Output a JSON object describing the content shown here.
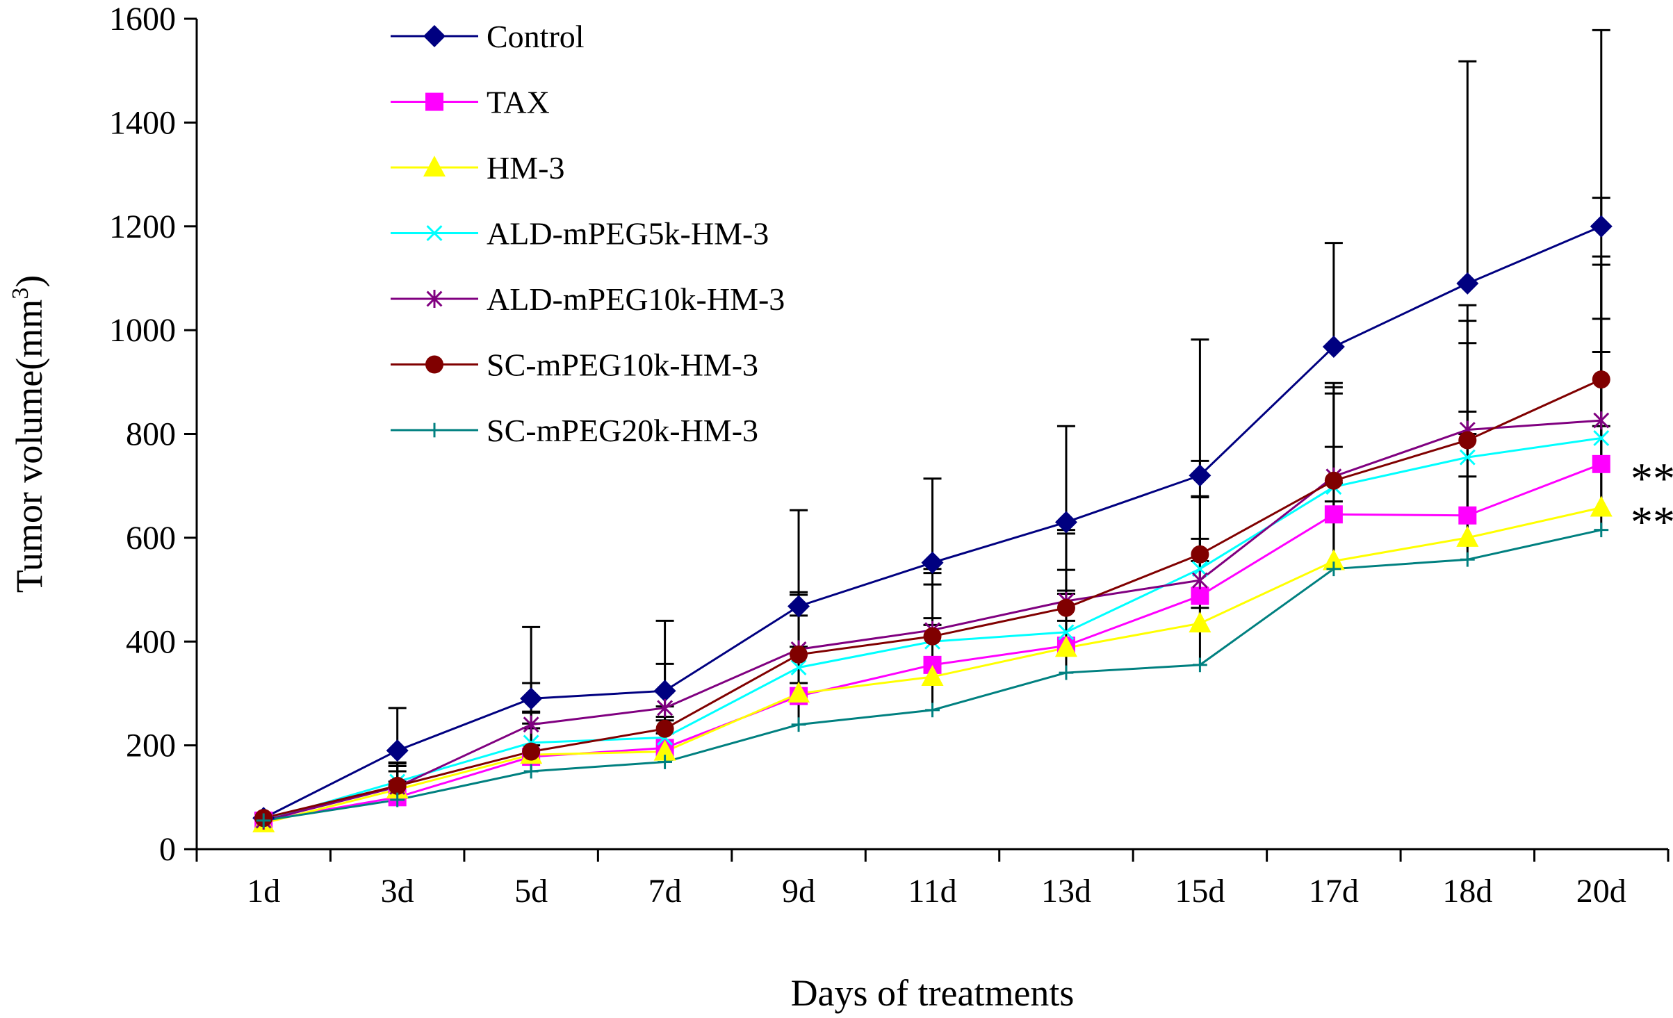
{
  "chart_data": {
    "type": "line",
    "title": "",
    "xlabel": "Days of treatments",
    "ylabel_main": "Tumor volume(mm",
    "ylabel_sup": "3",
    "ylabel_close": ")",
    "ylim": [
      0,
      1600
    ],
    "yticks": [
      0,
      200,
      400,
      600,
      800,
      1000,
      1200,
      1400,
      1600
    ],
    "ytick_labels": [
      "0",
      "200",
      "400",
      "600",
      "800",
      "1000",
      "1200",
      "1400",
      "1600"
    ],
    "categories": [
      "1d",
      "3d",
      "5d",
      "7d",
      "9d",
      "11d",
      "13d",
      "15d",
      "17d",
      "18d",
      "20d"
    ],
    "grid": false,
    "legend_position": "top-left",
    "series": [
      {
        "name": "Control",
        "color": "#000080",
        "marker": "diamond",
        "values": [
          60,
          190,
          290,
          305,
          468,
          552,
          630,
          720,
          968,
          1090,
          1200
        ],
        "err": [
          10,
          82,
          138,
          135,
          185,
          162,
          185,
          262,
          200,
          428,
          378
        ]
      },
      {
        "name": "TAX",
        "color": "#FF00FF",
        "marker": "square",
        "values": [
          55,
          100,
          178,
          195,
          295,
          355,
          392,
          488,
          645,
          643,
          742
        ],
        "err": [
          6,
          30,
          55,
          60,
          80,
          90,
          100,
          110,
          130,
          200,
          280
        ]
      },
      {
        "name": "HM-3",
        "color": "#FFFF00",
        "marker": "triangle",
        "values": [
          50,
          115,
          182,
          188,
          300,
          332,
          388,
          435,
          555,
          600,
          658
        ],
        "err": [
          6,
          35,
          60,
          60,
          90,
          100,
          110,
          120,
          150,
          200,
          300
        ]
      },
      {
        "name": "ALD-mPEG5k-HM-3",
        "color": "#00FFFF",
        "marker": "x",
        "values": [
          55,
          130,
          205,
          215,
          350,
          400,
          418,
          540,
          698,
          755,
          792
        ],
        "err": [
          7,
          35,
          60,
          60,
          100,
          110,
          120,
          140,
          180,
          220,
          350
        ]
      },
      {
        "name": "ALD-mPEG10k-HM-3",
        "color": "#800080",
        "marker": "asterisk",
        "values": [
          55,
          120,
          240,
          272,
          385,
          422,
          478,
          518,
          718,
          808,
          826
        ],
        "err": [
          7,
          40,
          80,
          85,
          110,
          110,
          130,
          160,
          180,
          240,
          300
        ]
      },
      {
        "name": "SC-mPEG10k-HM-3",
        "color": "#800000",
        "marker": "circle",
        "values": [
          60,
          122,
          188,
          232,
          375,
          410,
          465,
          568,
          710,
          788,
          905
        ],
        "err": [
          8,
          45,
          75,
          70,
          115,
          130,
          150,
          180,
          180,
          230,
          350
        ]
      },
      {
        "name": "SC-mPEG20k-HM-3",
        "color": "#008080",
        "marker": "plus",
        "values": [
          55,
          95,
          150,
          168,
          240,
          268,
          340,
          355,
          540,
          558,
          615
        ],
        "err": [
          6,
          25,
          50,
          55,
          80,
          90,
          100,
          110,
          130,
          160,
          200
        ]
      }
    ],
    "annotations": [
      {
        "text": "**",
        "series": "TAX",
        "category": "20d",
        "value": 742
      },
      {
        "text": "**",
        "series": "HM-3",
        "category": "20d",
        "value": 658
      }
    ]
  }
}
